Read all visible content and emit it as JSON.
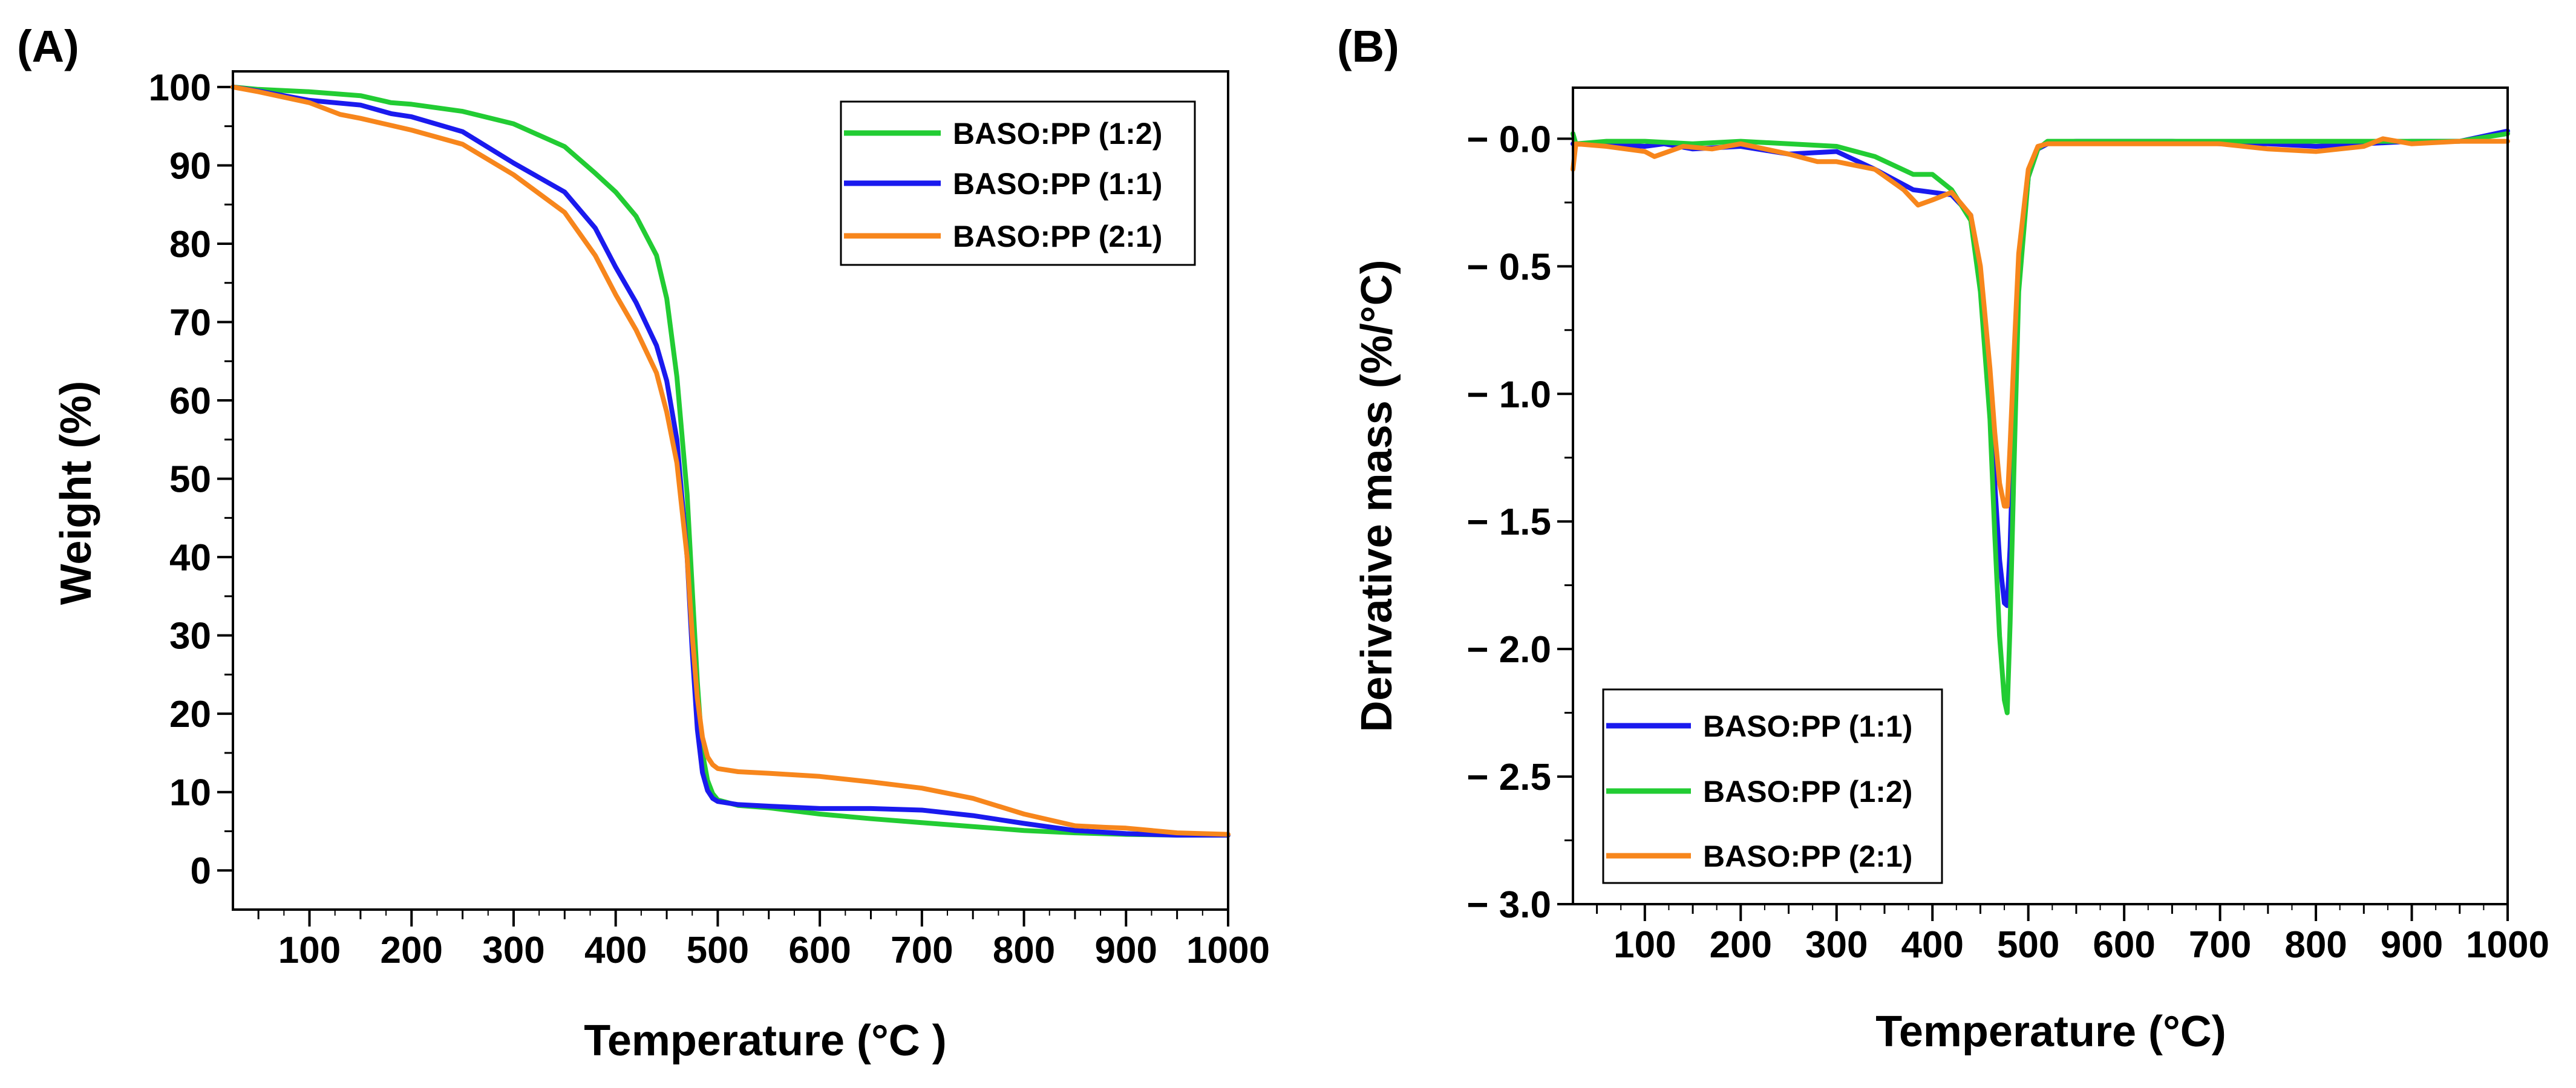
{
  "chart_data": [
    {
      "type": "line",
      "panel_label": "(A)",
      "xlabel": "Temperature (°C )",
      "ylabel": "Weight (%)",
      "xlim": [
        25,
        1000
      ],
      "ylim": [
        -5,
        102
      ],
      "xticks": [
        100,
        200,
        300,
        400,
        500,
        600,
        700,
        800,
        900,
        1000
      ],
      "yticks": [
        0,
        10,
        20,
        30,
        40,
        50,
        60,
        70,
        80,
        90,
        100
      ],
      "ytick_labels": [
        "0",
        "10",
        "20",
        "30",
        "40",
        "50",
        "60",
        "70",
        "80",
        "90",
        "100"
      ],
      "grid": false,
      "legend_position": "top-right",
      "series": [
        {
          "name": "BASO:PP (1:2)",
          "color": "#22cc33",
          "x": [
            25,
            50,
            100,
            150,
            180,
            200,
            250,
            300,
            350,
            380,
            400,
            420,
            440,
            450,
            460,
            470,
            475,
            480,
            485,
            490,
            495,
            500,
            520,
            550,
            600,
            650,
            700,
            750,
            800,
            850,
            900,
            950,
            1000
          ],
          "y": [
            100,
            99.7,
            99.4,
            98.9,
            98.0,
            97.8,
            96.9,
            95.3,
            92.4,
            89.0,
            86.6,
            83.5,
            78.5,
            73.0,
            63.0,
            48.0,
            36.0,
            24.0,
            15.0,
            11.5,
            9.8,
            9.0,
            8.3,
            8.0,
            7.2,
            6.6,
            6.1,
            5.6,
            5.1,
            4.8,
            4.6,
            4.5,
            4.5
          ]
        },
        {
          "name": "BASO:PP (1:1)",
          "color": "#1a1aee",
          "x": [
            25,
            50,
            100,
            150,
            180,
            200,
            250,
            300,
            350,
            380,
            400,
            420,
            440,
            450,
            460,
            470,
            475,
            480,
            485,
            490,
            495,
            500,
            520,
            550,
            600,
            650,
            700,
            750,
            800,
            850,
            900,
            950,
            1000
          ],
          "y": [
            100,
            99.5,
            98.3,
            97.7,
            96.6,
            96.2,
            94.3,
            90.3,
            86.6,
            82.0,
            77.0,
            72.5,
            67.0,
            62.5,
            55.0,
            40.0,
            28.0,
            18.0,
            12.5,
            10.2,
            9.2,
            8.8,
            8.4,
            8.2,
            7.9,
            7.9,
            7.7,
            7.0,
            6.0,
            5.1,
            4.7,
            4.5,
            4.5
          ]
        },
        {
          "name": "BASO:PP (2:1)",
          "color": "#f7861c",
          "x": [
            25,
            50,
            100,
            130,
            150,
            200,
            250,
            300,
            350,
            380,
            400,
            420,
            440,
            450,
            460,
            470,
            475,
            480,
            485,
            490,
            495,
            500,
            520,
            550,
            600,
            650,
            700,
            750,
            800,
            850,
            880,
            900,
            950,
            1000
          ],
          "y": [
            100,
            99.4,
            98.0,
            96.5,
            96.0,
            94.5,
            92.7,
            88.8,
            84.0,
            78.5,
            73.5,
            69.0,
            63.5,
            58.5,
            52.0,
            40.0,
            30.0,
            22.0,
            17.0,
            14.5,
            13.5,
            13.0,
            12.6,
            12.4,
            12.0,
            11.3,
            10.5,
            9.2,
            7.2,
            5.7,
            5.5,
            5.4,
            4.8,
            4.6
          ]
        }
      ]
    },
    {
      "type": "line",
      "panel_label": "(B)",
      "xlabel": "Temperature (°C)",
      "ylabel": "Derivative mass (%/°C)",
      "xlim": [
        25,
        1000
      ],
      "ylim": [
        -3.0,
        0.2
      ],
      "xticks": [
        100,
        200,
        300,
        400,
        500,
        600,
        700,
        800,
        900,
        1000
      ],
      "yticks": [
        0.0,
        -0.5,
        -1.0,
        -1.5,
        -2.0,
        -2.5,
        -3.0
      ],
      "ytick_labels": [
        "− 0.0",
        "− 0.5",
        "− 1.0",
        "− 1.5",
        "− 2.0",
        "− 2.5",
        "− 3.0"
      ],
      "grid": false,
      "legend_position": "bottom-left",
      "series": [
        {
          "name": "BASO:PP (1:1)",
          "color": "#1a1aee",
          "x": [
            25,
            60,
            100,
            120,
            150,
            200,
            250,
            300,
            340,
            380,
            400,
            420,
            440,
            450,
            460,
            465,
            470,
            475,
            478,
            481,
            485,
            490,
            500,
            510,
            520,
            550,
            600,
            650,
            700,
            750,
            800,
            850,
            900,
            950,
            1000
          ],
          "y": [
            -0.02,
            -0.02,
            -0.03,
            -0.02,
            -0.04,
            -0.03,
            -0.06,
            -0.05,
            -0.12,
            -0.2,
            -0.21,
            -0.22,
            -0.3,
            -0.55,
            -1.0,
            -1.35,
            -1.65,
            -1.82,
            -1.83,
            -1.6,
            -1.1,
            -0.55,
            -0.15,
            -0.04,
            -0.02,
            -0.01,
            -0.01,
            -0.01,
            -0.02,
            -0.02,
            -0.03,
            -0.02,
            -0.01,
            -0.01,
            0.03
          ]
        },
        {
          "name": "BASO:PP (1:2)",
          "color": "#22cc33",
          "x": [
            25,
            28,
            60,
            100,
            150,
            200,
            250,
            300,
            340,
            380,
            400,
            420,
            440,
            450,
            460,
            465,
            470,
            475,
            478,
            481,
            485,
            490,
            500,
            510,
            520,
            550,
            600,
            650,
            700,
            750,
            800,
            850,
            900,
            950,
            1000
          ],
          "y": [
            0.02,
            -0.02,
            -0.01,
            -0.01,
            -0.02,
            -0.01,
            -0.02,
            -0.03,
            -0.07,
            -0.14,
            -0.14,
            -0.2,
            -0.32,
            -0.6,
            -1.1,
            -1.55,
            -1.95,
            -2.2,
            -2.25,
            -1.9,
            -1.3,
            -0.6,
            -0.15,
            -0.04,
            -0.01,
            -0.01,
            -0.01,
            -0.01,
            -0.01,
            -0.01,
            -0.01,
            -0.01,
            -0.01,
            -0.01,
            0.02
          ]
        },
        {
          "name": "BASO:PP (2:1)",
          "color": "#f7861c",
          "x": [
            25,
            28,
            60,
            100,
            110,
            140,
            170,
            200,
            250,
            280,
            300,
            340,
            370,
            385,
            400,
            420,
            440,
            450,
            460,
            465,
            470,
            475,
            478,
            481,
            485,
            490,
            500,
            510,
            520,
            550,
            600,
            650,
            700,
            750,
            800,
            850,
            870,
            900,
            950,
            1000
          ],
          "y": [
            -0.12,
            -0.02,
            -0.03,
            -0.05,
            -0.07,
            -0.03,
            -0.04,
            -0.02,
            -0.06,
            -0.09,
            -0.09,
            -0.12,
            -0.2,
            -0.26,
            -0.24,
            -0.21,
            -0.3,
            -0.5,
            -0.9,
            -1.15,
            -1.35,
            -1.44,
            -1.44,
            -1.2,
            -0.85,
            -0.45,
            -0.12,
            -0.03,
            -0.02,
            -0.02,
            -0.02,
            -0.02,
            -0.02,
            -0.04,
            -0.05,
            -0.03,
            0.0,
            -0.02,
            -0.01,
            -0.01
          ]
        }
      ]
    }
  ]
}
